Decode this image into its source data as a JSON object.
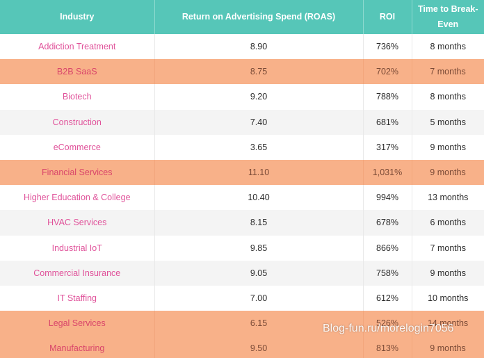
{
  "table": {
    "headers": [
      "Industry",
      "Return on Advertising Spend (ROAS)",
      "ROI",
      "Time to Break-Even"
    ],
    "rows": [
      {
        "industry": "Addiction Treatment",
        "roas": "8.90",
        "roi": "736%",
        "time": "8 months"
      },
      {
        "industry": "B2B SaaS",
        "roas": "8.75",
        "roi": "702%",
        "time": "7 months"
      },
      {
        "industry": "Biotech",
        "roas": "9.20",
        "roi": "788%",
        "time": "8 months"
      },
      {
        "industry": "Construction",
        "roas": "7.40",
        "roi": "681%",
        "time": "5 months"
      },
      {
        "industry": "eCommerce",
        "roas": "3.65",
        "roi": "317%",
        "time": "9 months"
      },
      {
        "industry": "Financial Services",
        "roas": "11.10",
        "roi": "1,031%",
        "time": "9 months"
      },
      {
        "industry": "Higher Education & College",
        "roas": "10.40",
        "roi": "994%",
        "time": "13 months"
      },
      {
        "industry": "HVAC Services",
        "roas": "8.15",
        "roi": "678%",
        "time": "6 months"
      },
      {
        "industry": "Industrial IoT",
        "roas": "9.85",
        "roi": "866%",
        "time": "7 months"
      },
      {
        "industry": "Commercial Insurance",
        "roas": "9.05",
        "roi": "758%",
        "time": "9 months"
      },
      {
        "industry": "IT Staffing",
        "roas": "7.00",
        "roi": "612%",
        "time": "10 months"
      },
      {
        "industry": "Legal Services",
        "roas": "6.15",
        "roi": "526%",
        "time": "14 months"
      },
      {
        "industry": "Manufacturing",
        "roas": "9.50",
        "roi": "813%",
        "time": "9 months"
      }
    ]
  },
  "watermark": "Blog-fun.ru/morelogin7056",
  "colors": {
    "header": "#56c6b8",
    "highlight_row": "#f8b189",
    "industry_text": "#e0529a"
  }
}
